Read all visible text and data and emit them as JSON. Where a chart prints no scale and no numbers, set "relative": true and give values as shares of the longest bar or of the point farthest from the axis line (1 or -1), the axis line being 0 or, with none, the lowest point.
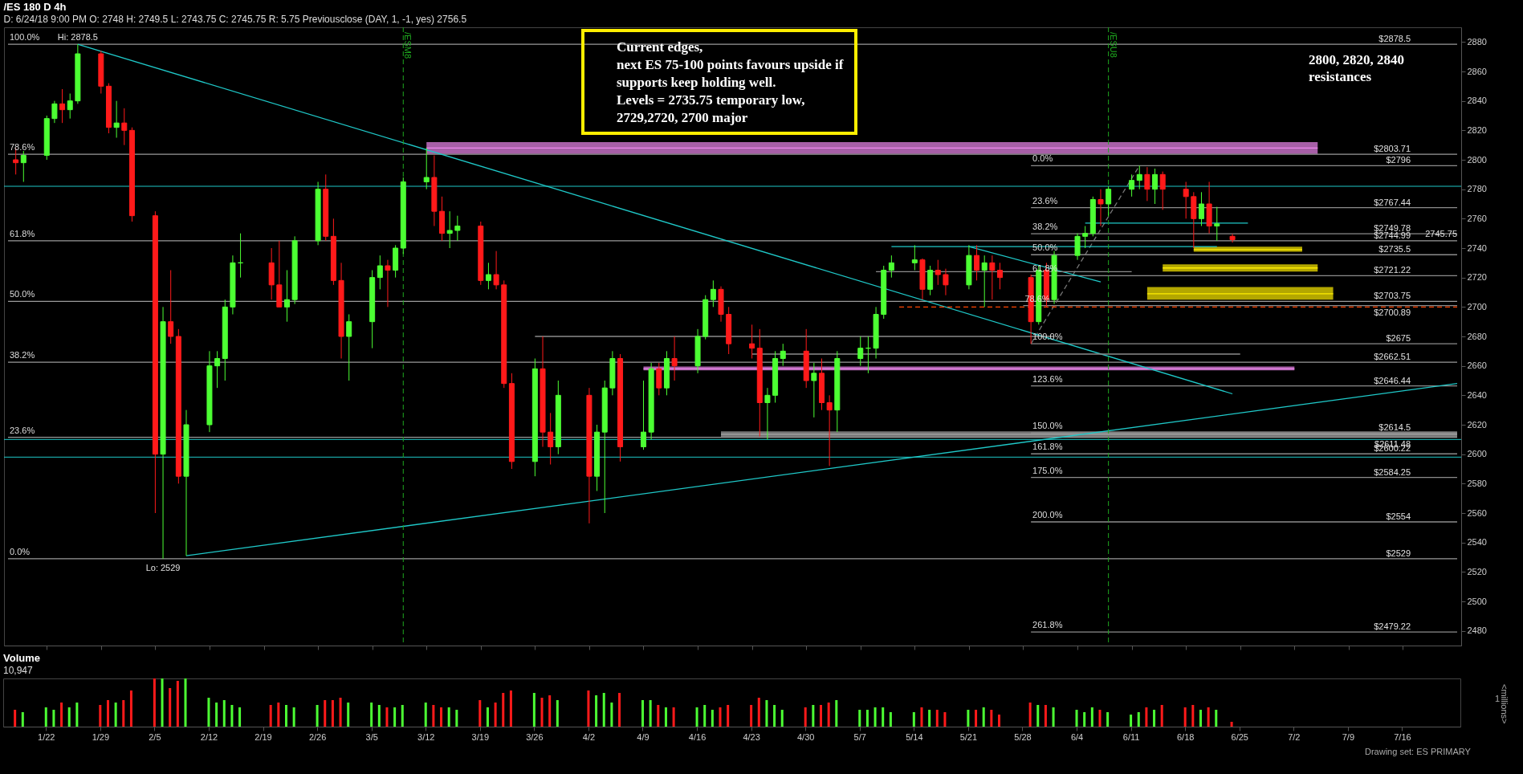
{
  "chart_data": [
    {
      "type": "candlestick",
      "title": "/ES 180 D 4h",
      "subtitle": "D: 6/24/18 9:00 PM   O: 2748   H: 2749.5   L: 2743.75   C: 2745.75   R: 5.75   Previousclose (DAY, 1, -1, yes)   2756.5",
      "x": [
        "--01-18",
        "--01-19",
        "--01-22",
        "--01-23",
        "--01-24",
        "--01-25",
        "--01-26",
        "--01-29",
        "--01-30",
        "--01-31",
        "--02-01",
        "--02-02",
        "--02-05",
        "--02-06",
        "--02-07",
        "--02-08",
        "--02-09",
        "--02-12",
        "--02-13",
        "--02-14",
        "--02-15",
        "--02-16",
        "--02-20",
        "--02-21",
        "--02-22",
        "--02-23",
        "--02-26",
        "--02-27",
        "--02-28",
        "--03-01",
        "--03-02",
        "--03-05",
        "--03-06",
        "--03-07",
        "--03-08",
        "--03-09",
        "--03-12",
        "--03-13",
        "--03-14",
        "--03-15",
        "--03-16",
        "--03-19",
        "--03-20",
        "--03-21",
        "--03-22",
        "--03-23",
        "--03-26",
        "--03-27",
        "--03-28",
        "--03-29",
        "--04-02",
        "--04-03",
        "--04-04",
        "--04-05",
        "--04-06",
        "--04-09",
        "--04-10",
        "--04-11",
        "--04-12",
        "--04-13",
        "--04-16",
        "--04-17",
        "--04-18",
        "--04-19",
        "--04-20",
        "--04-23",
        "--04-24",
        "--04-25",
        "--04-26",
        "--04-27",
        "--04-30",
        "--05-01",
        "--05-02",
        "--05-03",
        "--05-04",
        "--05-07",
        "--05-08",
        "--05-09",
        "--05-10",
        "--05-11",
        "--05-14",
        "--05-15",
        "--05-16",
        "--05-17",
        "--05-18",
        "--05-21",
        "--05-22",
        "--05-23",
        "--05-24",
        "--05-25",
        "--05-29",
        "--05-30",
        "--05-31",
        "--06-01",
        "--06-04",
        "--06-05",
        "--06-06",
        "--06-07",
        "--06-08",
        "--06-11",
        "--06-12",
        "--06-13",
        "--06-14",
        "--06-15",
        "--06-18",
        "--06-19",
        "--06-20",
        "--06-21",
        "--06-22",
        "--06-24"
      ],
      "ohlc": [
        [
          2800,
          2808,
          2790,
          2798
        ],
        [
          2798,
          2806,
          2785,
          2803
        ],
        [
          2803,
          2830,
          2800,
          2828
        ],
        [
          2828,
          2840,
          2825,
          2838
        ],
        [
          2838,
          2848,
          2825,
          2834
        ],
        [
          2834,
          2845,
          2828,
          2840
        ],
        [
          2840,
          2878.5,
          2838,
          2872
        ],
        [
          2872,
          2874,
          2845,
          2850
        ],
        [
          2850,
          2852,
          2818,
          2822
        ],
        [
          2822,
          2840,
          2815,
          2825
        ],
        [
          2825,
          2835,
          2810,
          2820
        ],
        [
          2820,
          2822,
          2758,
          2762
        ],
        [
          2762,
          2765,
          2560,
          2600
        ],
        [
          2600,
          2700,
          2529,
          2690
        ],
        [
          2690,
          2725,
          2675,
          2680
        ],
        [
          2680,
          2685,
          2580,
          2585
        ],
        [
          2585,
          2630,
          2531,
          2620
        ],
        [
          2620,
          2670,
          2615,
          2660
        ],
        [
          2660,
          2670,
          2645,
          2665
        ],
        [
          2665,
          2705,
          2650,
          2700
        ],
        [
          2700,
          2735,
          2695,
          2730
        ],
        [
          2730,
          2750,
          2720,
          2730
        ],
        [
          2730,
          2740,
          2705,
          2715
        ],
        [
          2715,
          2745,
          2700,
          2700
        ],
        [
          2700,
          2725,
          2690,
          2705
        ],
        [
          2705,
          2748,
          2702,
          2745
        ],
        [
          2745,
          2785,
          2742,
          2780
        ],
        [
          2780,
          2790,
          2745,
          2748
        ],
        [
          2748,
          2760,
          2715,
          2718
        ],
        [
          2718,
          2730,
          2665,
          2680
        ],
        [
          2680,
          2695,
          2650,
          2690
        ],
        [
          2690,
          2725,
          2672,
          2720
        ],
        [
          2720,
          2735,
          2712,
          2728
        ],
        [
          2728,
          2732,
          2700,
          2725
        ],
        [
          2725,
          2742,
          2720,
          2740
        ],
        [
          2740,
          2788,
          2736,
          2785
        ],
        [
          2785,
          2808,
          2780,
          2788
        ],
        [
          2788,
          2803,
          2755,
          2765
        ],
        [
          2765,
          2775,
          2745,
          2750
        ],
        [
          2750,
          2765,
          2740,
          2752
        ],
        [
          2752,
          2762,
          2745,
          2755
        ],
        [
          2755,
          2758,
          2715,
          2718
        ],
        [
          2718,
          2730,
          2712,
          2722
        ],
        [
          2722,
          2738,
          2712,
          2715
        ],
        [
          2715,
          2718,
          2645,
          2648
        ],
        [
          2648,
          2655,
          2590,
          2595
        ],
        [
          2595,
          2665,
          2585,
          2658
        ],
        [
          2658,
          2680,
          2605,
          2615
        ],
        [
          2615,
          2628,
          2593,
          2605
        ],
        [
          2605,
          2650,
          2600,
          2640
        ],
        [
          2640,
          2645,
          2553,
          2585
        ],
        [
          2585,
          2620,
          2575,
          2615
        ],
        [
          2615,
          2650,
          2560,
          2645
        ],
        [
          2645,
          2670,
          2640,
          2665
        ],
        [
          2665,
          2668,
          2595,
          2605
        ],
        [
          2605,
          2650,
          2603,
          2615
        ],
        [
          2615,
          2662,
          2610,
          2658
        ],
        [
          2658,
          2662,
          2640,
          2645
        ],
        [
          2645,
          2670,
          2640,
          2665
        ],
        [
          2665,
          2680,
          2650,
          2660
        ],
        [
          2660,
          2685,
          2655,
          2680
        ],
        [
          2680,
          2708,
          2678,
          2705
        ],
        [
          2705,
          2718,
          2700,
          2712
        ],
        [
          2712,
          2714,
          2690,
          2695
        ],
        [
          2695,
          2700,
          2668,
          2675
        ],
        [
          2675,
          2688,
          2665,
          2672
        ],
        [
          2672,
          2685,
          2612,
          2635
        ],
        [
          2635,
          2645,
          2610,
          2640
        ],
        [
          2640,
          2670,
          2635,
          2665
        ],
        [
          2665,
          2675,
          2660,
          2670
        ],
        [
          2670,
          2685,
          2645,
          2650
        ],
        [
          2650,
          2662,
          2625,
          2655
        ],
        [
          2655,
          2665,
          2630,
          2635
        ],
        [
          2635,
          2640,
          2592,
          2630
        ],
        [
          2630,
          2670,
          2615,
          2665
        ],
        [
          2665,
          2680,
          2660,
          2672
        ],
        [
          2672,
          2680,
          2655,
          2672
        ],
        [
          2672,
          2700,
          2665,
          2695
        ],
        [
          2695,
          2728,
          2692,
          2725
        ],
        [
          2725,
          2735,
          2720,
          2730
        ],
        [
          2730,
          2742,
          2725,
          2732
        ],
        [
          2732,
          2733,
          2705,
          2712
        ],
        [
          2712,
          2728,
          2708,
          2725
        ],
        [
          2725,
          2732,
          2715,
          2722
        ],
        [
          2722,
          2726,
          2708,
          2715
        ],
        [
          2715,
          2742,
          2712,
          2735
        ],
        [
          2735,
          2742,
          2718,
          2725
        ],
        [
          2725,
          2735,
          2700,
          2730
        ],
        [
          2730,
          2735,
          2705,
          2725
        ],
        [
          2725,
          2730,
          2712,
          2720
        ],
        [
          2720,
          2722,
          2675,
          2690
        ],
        [
          2690,
          2728,
          2688,
          2725
        ],
        [
          2725,
          2730,
          2700,
          2705
        ],
        [
          2705,
          2738,
          2702,
          2735
        ],
        [
          2735,
          2750,
          2732,
          2748
        ],
        [
          2748,
          2755,
          2740,
          2750
        ],
        [
          2750,
          2775,
          2748,
          2773
        ],
        [
          2773,
          2780,
          2755,
          2770
        ],
        [
          2770,
          2782,
          2762,
          2780
        ],
        [
          2780,
          2790,
          2775,
          2786
        ],
        [
          2786,
          2796,
          2780,
          2790
        ],
        [
          2790,
          2795,
          2772,
          2780
        ],
        [
          2780,
          2794,
          2770,
          2790
        ],
        [
          2790,
          2792,
          2766,
          2780
        ],
        [
          2780,
          2785,
          2760,
          2775
        ],
        [
          2775,
          2778,
          2740,
          2760
        ],
        [
          2760,
          2778,
          2755,
          2770
        ],
        [
          2770,
          2785,
          2750,
          2755
        ],
        [
          2755,
          2768,
          2745,
          2756.5
        ],
        [
          2748,
          2749.5,
          2743.75,
          2745.75
        ]
      ],
      "colors": [
        "#ff1a1a",
        "#4cff33",
        "#4cff33",
        "#4cff33",
        "#ff1a1a",
        "#4cff33",
        "#4cff33",
        "#ff1a1a",
        "#ff1a1a",
        "#4cff33",
        "#ff1a1a",
        "#ff1a1a",
        "#ff1a1a",
        "#4cff33",
        "#ff1a1a",
        "#ff1a1a",
        "#4cff33",
        "#4cff33",
        "#4cff33",
        "#4cff33",
        "#4cff33",
        "#4cff33",
        "#ff1a1a",
        "#ff1a1a",
        "#4cff33",
        "#4cff33",
        "#4cff33",
        "#ff1a1a",
        "#ff1a1a",
        "#ff1a1a",
        "#4cff33",
        "#4cff33",
        "#4cff33",
        "#ff1a1a",
        "#4cff33",
        "#4cff33",
        "#4cff33",
        "#ff1a1a",
        "#ff1a1a",
        "#4cff33",
        "#4cff33",
        "#ff1a1a",
        "#4cff33",
        "#ff1a1a",
        "#ff1a1a",
        "#ff1a1a",
        "#4cff33",
        "#ff1a1a",
        "#ff1a1a",
        "#4cff33",
        "#ff1a1a",
        "#4cff33",
        "#4cff33",
        "#4cff33",
        "#ff1a1a",
        "#4cff33",
        "#4cff33",
        "#ff1a1a",
        "#4cff33",
        "#ff1a1a",
        "#4cff33",
        "#4cff33",
        "#4cff33",
        "#ff1a1a",
        "#ff1a1a",
        "#ff1a1a",
        "#ff1a1a",
        "#4cff33",
        "#4cff33",
        "#4cff33",
        "#ff1a1a",
        "#4cff33",
        "#ff1a1a",
        "#ff1a1a",
        "#4cff33",
        "#4cff33",
        "#4cff33",
        "#4cff33",
        "#4cff33",
        "#4cff33",
        "#4cff33",
        "#ff1a1a",
        "#4cff33",
        "#ff1a1a",
        "#ff1a1a",
        "#4cff33",
        "#ff1a1a",
        "#4cff33",
        "#ff1a1a",
        "#ff1a1a",
        "#ff1a1a",
        "#4cff33",
        "#ff1a1a",
        "#4cff33",
        "#4cff33",
        "#4cff33",
        "#4cff33",
        "#ff1a1a",
        "#4cff33",
        "#4cff33",
        "#4cff33",
        "#ff1a1a",
        "#4cff33",
        "#ff1a1a",
        "#ff1a1a",
        "#ff1a1a",
        "#4cff33",
        "#ff1a1a",
        "#4cff33",
        "#ff1a1a"
      ],
      "series": [
        {
          "type": "line",
          "x": [
            "--03-12",
            "--07-05"
          ],
          "values": [
            2808,
            2808
          ],
          "lower": [
            2804,
            2804
          ],
          "upper": [
            2812,
            2812
          ],
          "color": "#ee88ee"
        },
        {
          "type": "line",
          "x": [
            "--04-09",
            "--07-02"
          ],
          "values": [
            2658,
            2658
          ],
          "lower": [
            2657,
            2657
          ],
          "upper": [
            2659.5,
            2659.5
          ],
          "color": "#ee88ee"
        },
        {
          "type": "line",
          "x": [
            "--04-19",
            "--07-23"
          ],
          "values": [
            2613.5,
            2613.5
          ],
          "lower": [
            2611.5,
            2611.5
          ],
          "upper": [
            2615.5,
            2615.5
          ],
          "color": "#a8a8a8"
        },
        {
          "type": "line",
          "x": [
            "--06-19",
            "--07-03"
          ],
          "values": [
            2739,
            2739
          ],
          "lower": [
            2737.5,
            2737.5
          ],
          "upper": [
            2741,
            2741
          ],
          "color": "#ffee00"
        },
        {
          "type": "line",
          "x": [
            "--06-15",
            "--07-05"
          ],
          "values": [
            2726.5,
            2726.5
          ],
          "lower": [
            2724,
            2724
          ],
          "upper": [
            2729,
            2729
          ],
          "color": "#ffee00"
        },
        {
          "type": "line",
          "x": [
            "--06-13",
            "--07-07"
          ],
          "values": [
            2709,
            2709
          ],
          "lower": [
            2705,
            2705
          ],
          "upper": [
            2713.5,
            2713.5
          ],
          "color": "#ffee00"
        },
        {
          "type": "line",
          "name": "100.0%",
          "x": [
            "--01-17",
            "--07-23"
          ],
          "values": [
            2878.5,
            2878.5
          ],
          "color": "#9a9a9a"
        },
        {
          "type": "line",
          "name": "78.6%",
          "x": [
            "--01-17",
            "--07-23"
          ],
          "values": [
            2803.71,
            2803.71
          ],
          "color": "#9a9a9a"
        },
        {
          "type": "line",
          "name": "61.8%",
          "x": [
            "--01-17",
            "--07-23"
          ],
          "values": [
            2744.99,
            2744.99
          ],
          "color": "#9a9a9a"
        },
        {
          "type": "line",
          "name": "50.0%",
          "x": [
            "--01-17",
            "--07-23"
          ],
          "values": [
            2703.75,
            2703.75
          ],
          "color": "#9a9a9a"
        },
        {
          "type": "line",
          "name": "38.2%",
          "x": [
            "--01-17",
            "--07-23"
          ],
          "values": [
            2662.51,
            2662.51
          ],
          "color": "#9a9a9a"
        },
        {
          "type": "line",
          "name": "23.6%",
          "x": [
            "--01-17",
            "--07-23"
          ],
          "values": [
            2611.48,
            2611.48
          ],
          "color": "#9a9a9a"
        },
        {
          "type": "line",
          "name": "0.0%",
          "x": [
            "--01-17",
            "--07-23"
          ],
          "values": [
            2529,
            2529
          ],
          "color": "#9a9a9a"
        },
        {
          "type": "line",
          "name": "0.0%",
          "x": [
            "--05-29",
            "--07-23"
          ],
          "values": [
            2796,
            2796
          ],
          "color": "#8c8c8c"
        },
        {
          "type": "line",
          "name": "23.6%",
          "x": [
            "--05-29",
            "--07-23"
          ],
          "values": [
            2767.44,
            2767.44
          ],
          "color": "#8c8c8c"
        },
        {
          "type": "line",
          "name": "38.2%",
          "x": [
            "--05-29",
            "--07-23"
          ],
          "values": [
            2749.78,
            2749.78
          ],
          "color": "#8c8c8c"
        },
        {
          "type": "line",
          "name": "50.0%",
          "x": [
            "--05-29",
            "--07-23"
          ],
          "values": [
            2735.5,
            2735.5
          ],
          "color": "#8c8c8c"
        },
        {
          "type": "line",
          "name": "61.8%",
          "x": [
            "--05-29",
            "--07-23"
          ],
          "values": [
            2721.22,
            2721.22
          ],
          "color": "#8c8c8c"
        },
        {
          "type": "line",
          "name": "78.6%",
          "x": [
            "--05-28",
            "--07-23"
          ],
          "values": [
            2700.89,
            2700.89
          ],
          "color": "#8c8c8c"
        },
        {
          "type": "line",
          "name": "100.0%",
          "x": [
            "--05-29",
            "--07-23"
          ],
          "values": [
            2675,
            2675
          ],
          "color": "#8c8c8c"
        },
        {
          "type": "line",
          "name": "123.6%",
          "x": [
            "--05-29",
            "--07-23"
          ],
          "values": [
            2646.44,
            2646.44
          ],
          "color": "#8c8c8c"
        },
        {
          "type": "line",
          "name": "150.0%",
          "x": [
            "--05-29",
            "--07-23"
          ],
          "values": [
            2614.5,
            2614.5
          ],
          "color": "#8c8c8c"
        },
        {
          "type": "line",
          "name": "161.8%",
          "x": [
            "--05-29",
            "--07-23"
          ],
          "values": [
            2600.22,
            2600.22
          ],
          "color": "#8c8c8c"
        },
        {
          "type": "line",
          "name": "175.0%",
          "x": [
            "--05-29",
            "--07-23"
          ],
          "values": [
            2584.25,
            2584.25
          ],
          "color": "#8c8c8c"
        },
        {
          "type": "line",
          "name": "200.0%",
          "x": [
            "--05-29",
            "--07-23"
          ],
          "values": [
            2554,
            2554
          ],
          "color": "#8c8c8c"
        },
        {
          "type": "line",
          "name": "261.8%",
          "x": [
            "--05-29",
            "--07-23"
          ],
          "values": [
            2479.22,
            2479.22
          ],
          "color": "#8c8c8c"
        },
        {
          "type": "line",
          "x": [
            "--05-29",
            "--06-12"
          ],
          "values": [
            2675,
            2796
          ],
          "color": "#777777",
          "line_style": "dashed"
        },
        {
          "type": "line",
          "x": [
            "--01-26",
            "--06-24"
          ],
          "values": [
            2878.5,
            2641
          ],
          "color": "#1fc8c8"
        },
        {
          "type": "line",
          "x": [
            "--02-09",
            "--07-23"
          ],
          "values": [
            2531,
            2648
          ],
          "color": "#1fc8c8"
        },
        {
          "type": "line",
          "x": [
            "--05-21",
            "--06-07"
          ],
          "values": [
            2741,
            2717
          ],
          "color": "#1fc8c8"
        },
        {
          "type": "line",
          "x": [
            "--05-11",
            "--06-22"
          ],
          "values": [
            2741,
            2741
          ],
          "color": "#1fc8c8"
        },
        {
          "type": "line",
          "x": [
            "--06-05",
            "--06-26"
          ],
          "values": [
            2757,
            2757
          ],
          "color": "#1fc8c8"
        },
        {
          "type": "line",
          "x": [
            "--03-26",
            "--06-01"
          ],
          "values": [
            2680,
            2680
          ],
          "color": "#8c8c8c"
        },
        {
          "type": "line",
          "x": [
            "--04-23",
            "--06-25"
          ],
          "values": [
            2668,
            2668
          ],
          "color": "#8c8c8c"
        },
        {
          "type": "line",
          "x": [
            "--05-09",
            "--06-11"
          ],
          "values": [
            2724,
            2724
          ],
          "color": "#8c8c8c"
        },
        {
          "type": "line",
          "x": [
            "--05-12",
            "--07-23"
          ],
          "values": [
            2700,
            2700
          ],
          "color": "#ff4500",
          "line_style": "dashed"
        }
      ],
      "ref_lines": [
        {
          "axis": "y",
          "value": 2782,
          "color": "#1fc8c8"
        },
        {
          "axis": "y",
          "value": 2610,
          "color": "#1fc8c8"
        },
        {
          "axis": "y",
          "value": 2598,
          "color": "#1fc8c8"
        },
        {
          "axis": "x",
          "value": "--03-09",
          "label": "/ESM8",
          "color": "#1faa1f",
          "line_style": "dashed"
        },
        {
          "axis": "x",
          "value": "--06-08",
          "label": "/ESU8",
          "color": "#1faa1f",
          "line_style": "dashed"
        }
      ],
      "annotations": [
        "Current edges,\nnext ES 75-100 points favours upside if\nsupports keep holding well.\nLevels = 2735.75 temporary low,\n2729,2720, 2700 major",
        "2800, 2820, 2840\nresistances",
        {
          "text": "Lo: 2529",
          "x": "--02-06",
          "y": 2529
        },
        {
          "text": "Hi: 2878.5",
          "x": "--01-26",
          "y": 2878.5
        },
        {
          "text": "$2878.5",
          "x": "--07-17",
          "y": 2878.5
        },
        {
          "text": "$2803.71",
          "x": "--07-17",
          "y": 2803.71
        },
        {
          "text": "$2796",
          "x": "--07-17",
          "y": 2796
        },
        {
          "text": "$2767.44",
          "x": "--07-17",
          "y": 2767.44
        },
        {
          "text": "$2749.78",
          "x": "--07-17",
          "y": 2749.78
        },
        {
          "text": "$2744.99",
          "x": "--07-17",
          "y": 2744.99
        },
        {
          "text": "$2735.5",
          "x": "--07-17",
          "y": 2735.5
        },
        {
          "text": "$2721.22",
          "x": "--07-17",
          "y": 2721.22
        },
        {
          "text": "$2703.75",
          "x": "--07-17",
          "y": 2703.75
        },
        {
          "text": "$2700.89",
          "x": "--07-17",
          "y": 2700.89
        },
        {
          "text": "$2675",
          "x": "--07-17",
          "y": 2675
        },
        {
          "text": "$2662.51",
          "x": "--07-17",
          "y": 2662.51
        },
        {
          "text": "$2646.44",
          "x": "--07-17",
          "y": 2646.44
        },
        {
          "text": "$2614.5",
          "x": "--07-17",
          "y": 2614.5
        },
        {
          "text": "$2611.48",
          "x": "--07-17",
          "y": 2611.48
        },
        {
          "text": "$2600.22",
          "x": "--07-17",
          "y": 2600.22
        },
        {
          "text": "$2584.25",
          "x": "--07-17",
          "y": 2584.25
        },
        {
          "text": "$2554",
          "x": "--07-17",
          "y": 2554
        },
        {
          "text": "$2529",
          "x": "--07-17",
          "y": 2529
        },
        {
          "text": "$2479.22",
          "x": "--07-17",
          "y": 2479.22
        },
        {
          "text": "2745.75",
          "x": "--07-23",
          "y": 2745.75
        }
      ],
      "xlim": [
        "--01-17",
        "--07-23"
      ],
      "xticks": [
        {
          "value": "--01-22",
          "label": "1/22"
        },
        {
          "value": "--01-29",
          "label": "1/29"
        },
        {
          "value": "--02-05",
          "label": "2/5"
        },
        {
          "value": "--02-12",
          "label": "2/12"
        },
        {
          "value": "--02-19",
          "label": "2/19"
        },
        {
          "value": "--02-26",
          "label": "2/26"
        },
        {
          "value": "--03-05",
          "label": "3/5"
        },
        {
          "value": "--03-12",
          "label": "3/12"
        },
        {
          "value": "--03-19",
          "label": "3/19"
        },
        {
          "value": "--03-26",
          "label": "3/26"
        },
        {
          "value": "--04-02",
          "label": "4/2"
        },
        {
          "value": "--04-09",
          "label": "4/9"
        },
        {
          "value": "--04-16",
          "label": "4/16"
        },
        {
          "value": "--04-23",
          "label": "4/23"
        },
        {
          "value": "--04-30",
          "label": "4/30"
        },
        {
          "value": "--05-07",
          "label": "5/7"
        },
        {
          "value": "--05-14",
          "label": "5/14"
        },
        {
          "value": "--05-21",
          "label": "5/21"
        },
        {
          "value": "--05-28",
          "label": "5/28"
        },
        {
          "value": "--06-04",
          "label": "6/4"
        },
        {
          "value": "--06-11",
          "label": "6/11"
        },
        {
          "value": "--06-18",
          "label": "6/18"
        },
        {
          "value": "--06-25",
          "label": "6/25"
        },
        {
          "value": "--07-02",
          "label": "7/2"
        },
        {
          "value": "--07-09",
          "label": "7/9"
        },
        {
          "value": "--07-16",
          "label": "7/16"
        }
      ],
      "ylim": [
        2470,
        2890
      ],
      "yticks": [
        2480,
        2500,
        2520,
        2540,
        2560,
        2580,
        2600,
        2620,
        2640,
        2660,
        2680,
        2700,
        2720,
        2740,
        2760,
        2780,
        2800,
        2820,
        2840,
        2860,
        2880
      ],
      "tick_labels": "y"
    },
    {
      "type": "bar",
      "title": "Volume",
      "subtitle": "10,947",
      "relative": true,
      "ylabel": "<millions>",
      "x": [
        "--01-18",
        "--01-19",
        "--01-22",
        "--01-23",
        "--01-24",
        "--01-25",
        "--01-26",
        "--01-29",
        "--01-30",
        "--01-31",
        "--02-01",
        "--02-02",
        "--02-05",
        "--02-06",
        "--02-07",
        "--02-08",
        "--02-09",
        "--02-12",
        "--02-13",
        "--02-14",
        "--02-15",
        "--02-16",
        "--02-20",
        "--02-21",
        "--02-22",
        "--02-23",
        "--02-26",
        "--02-27",
        "--02-28",
        "--03-01",
        "--03-02",
        "--03-05",
        "--03-06",
        "--03-07",
        "--03-08",
        "--03-09",
        "--03-12",
        "--03-13",
        "--03-14",
        "--03-15",
        "--03-16",
        "--03-19",
        "--03-20",
        "--03-21",
        "--03-22",
        "--03-23",
        "--03-26",
        "--03-27",
        "--03-28",
        "--03-29",
        "--04-02",
        "--04-03",
        "--04-04",
        "--04-05",
        "--04-06",
        "--04-09",
        "--04-10",
        "--04-11",
        "--04-12",
        "--04-13",
        "--04-16",
        "--04-17",
        "--04-18",
        "--04-19",
        "--04-20",
        "--04-23",
        "--04-24",
        "--04-25",
        "--04-26",
        "--04-27",
        "--04-30",
        "--05-01",
        "--05-02",
        "--05-03",
        "--05-04",
        "--05-07",
        "--05-08",
        "--05-09",
        "--05-10",
        "--05-11",
        "--05-14",
        "--05-15",
        "--05-16",
        "--05-17",
        "--05-18",
        "--05-21",
        "--05-22",
        "--05-23",
        "--05-24",
        "--05-25",
        "--05-29",
        "--05-30",
        "--05-31",
        "--06-01",
        "--06-04",
        "--06-05",
        "--06-06",
        "--06-07",
        "--06-08",
        "--06-11",
        "--06-12",
        "--06-13",
        "--06-14",
        "--06-15",
        "--06-18",
        "--06-19",
        "--06-20",
        "--06-21",
        "--06-22",
        "--06-24"
      ],
      "values": [
        0.35,
        0.3,
        0.4,
        0.35,
        0.5,
        0.4,
        0.5,
        0.45,
        0.55,
        0.5,
        0.55,
        0.75,
        1.0,
        1.0,
        0.8,
        0.95,
        1.0,
        0.6,
        0.5,
        0.55,
        0.45,
        0.4,
        0.45,
        0.5,
        0.45,
        0.4,
        0.45,
        0.55,
        0.55,
        0.6,
        0.5,
        0.5,
        0.45,
        0.4,
        0.4,
        0.45,
        0.5,
        0.45,
        0.4,
        0.4,
        0.35,
        0.55,
        0.4,
        0.5,
        0.7,
        0.75,
        0.7,
        0.6,
        0.65,
        0.55,
        0.75,
        0.65,
        0.7,
        0.5,
        0.7,
        0.55,
        0.55,
        0.45,
        0.4,
        0.4,
        0.4,
        0.45,
        0.35,
        0.4,
        0.45,
        0.45,
        0.6,
        0.55,
        0.45,
        0.35,
        0.4,
        0.45,
        0.45,
        0.5,
        0.55,
        0.35,
        0.35,
        0.4,
        0.4,
        0.3,
        0.3,
        0.4,
        0.35,
        0.35,
        0.3,
        0.35,
        0.35,
        0.4,
        0.35,
        0.25,
        0.5,
        0.45,
        0.45,
        0.4,
        0.35,
        0.3,
        0.4,
        0.35,
        0.3,
        0.25,
        0.3,
        0.4,
        0.35,
        0.45,
        0.4,
        0.45,
        0.35,
        0.4,
        0.35,
        0.1
      ],
      "colors": [
        "#ff1a1a",
        "#4cff33",
        "#4cff33",
        "#4cff33",
        "#ff1a1a",
        "#4cff33",
        "#4cff33",
        "#ff1a1a",
        "#ff1a1a",
        "#4cff33",
        "#ff1a1a",
        "#ff1a1a",
        "#ff1a1a",
        "#4cff33",
        "#ff1a1a",
        "#ff1a1a",
        "#4cff33",
        "#4cff33",
        "#4cff33",
        "#4cff33",
        "#4cff33",
        "#4cff33",
        "#ff1a1a",
        "#ff1a1a",
        "#4cff33",
        "#4cff33",
        "#4cff33",
        "#ff1a1a",
        "#ff1a1a",
        "#ff1a1a",
        "#4cff33",
        "#4cff33",
        "#4cff33",
        "#ff1a1a",
        "#4cff33",
        "#4cff33",
        "#4cff33",
        "#ff1a1a",
        "#ff1a1a",
        "#4cff33",
        "#4cff33",
        "#ff1a1a",
        "#4cff33",
        "#ff1a1a",
        "#ff1a1a",
        "#ff1a1a",
        "#4cff33",
        "#ff1a1a",
        "#ff1a1a",
        "#4cff33",
        "#ff1a1a",
        "#4cff33",
        "#4cff33",
        "#4cff33",
        "#ff1a1a",
        "#4cff33",
        "#4cff33",
        "#ff1a1a",
        "#4cff33",
        "#ff1a1a",
        "#4cff33",
        "#4cff33",
        "#4cff33",
        "#ff1a1a",
        "#ff1a1a",
        "#ff1a1a",
        "#ff1a1a",
        "#4cff33",
        "#4cff33",
        "#4cff33",
        "#ff1a1a",
        "#4cff33",
        "#ff1a1a",
        "#ff1a1a",
        "#4cff33",
        "#4cff33",
        "#4cff33",
        "#4cff33",
        "#4cff33",
        "#4cff33",
        "#4cff33",
        "#ff1a1a",
        "#4cff33",
        "#ff1a1a",
        "#ff1a1a",
        "#4cff33",
        "#ff1a1a",
        "#4cff33",
        "#ff1a1a",
        "#ff1a1a",
        "#ff1a1a",
        "#4cff33",
        "#ff1a1a",
        "#4cff33",
        "#4cff33",
        "#4cff33",
        "#4cff33",
        "#ff1a1a",
        "#4cff33",
        "#4cff33",
        "#4cff33",
        "#ff1a1a",
        "#4cff33",
        "#ff1a1a",
        "#ff1a1a",
        "#ff1a1a",
        "#4cff33",
        "#ff1a1a",
        "#4cff33",
        "#ff1a1a"
      ],
      "annotations": [
        "1",
        "Drawing set: ES PRIMARY"
      ],
      "xlim": [
        "--01-17",
        "--07-23"
      ],
      "xticks": [
        {
          "value": "--01-22",
          "label": "1/22"
        },
        {
          "value": "--01-29",
          "label": "1/29"
        },
        {
          "value": "--02-05",
          "label": "2/5"
        },
        {
          "value": "--02-12",
          "label": "2/12"
        },
        {
          "value": "--02-19",
          "label": "2/19"
        },
        {
          "value": "--02-26",
          "label": "2/26"
        },
        {
          "value": "--03-05",
          "label": "3/5"
        },
        {
          "value": "--03-12",
          "label": "3/12"
        },
        {
          "value": "--03-19",
          "label": "3/19"
        },
        {
          "value": "--03-26",
          "label": "3/26"
        },
        {
          "value": "--04-02",
          "label": "4/2"
        },
        {
          "value": "--04-09",
          "label": "4/9"
        },
        {
          "value": "--04-16",
          "label": "4/16"
        },
        {
          "value": "--04-23",
          "label": "4/23"
        },
        {
          "value": "--04-30",
          "label": "4/30"
        },
        {
          "value": "--05-07",
          "label": "5/7"
        },
        {
          "value": "--05-14",
          "label": "5/14"
        },
        {
          "value": "--05-21",
          "label": "5/21"
        },
        {
          "value": "--05-28",
          "label": "5/28"
        },
        {
          "value": "--06-04",
          "label": "6/4"
        },
        {
          "value": "--06-11",
          "label": "6/11"
        },
        {
          "value": "--06-18",
          "label": "6/18"
        },
        {
          "value": "--06-25",
          "label": "6/25"
        },
        {
          "value": "--07-02",
          "label": "7/2"
        },
        {
          "value": "--07-09",
          "label": "7/9"
        },
        {
          "value": "--07-16",
          "label": "7/16"
        }
      ]
    }
  ]
}
